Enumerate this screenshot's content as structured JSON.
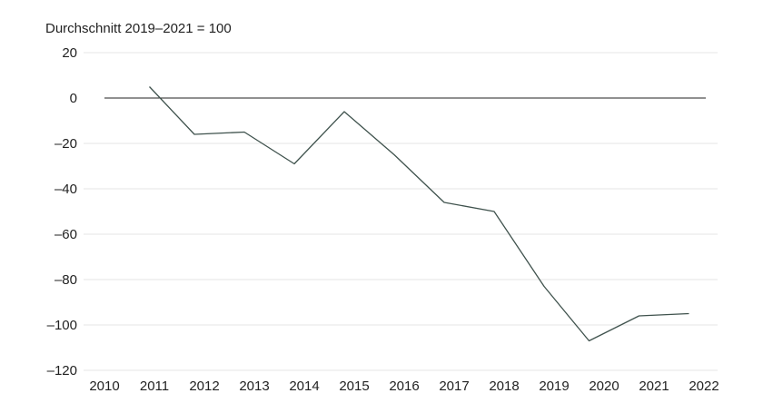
{
  "chart_data": {
    "type": "line",
    "unit_label": "Durchschnitt 2019–2021 = 100",
    "x_ticks": [
      "2010",
      "2011",
      "2012",
      "2013",
      "2014",
      "2015",
      "2016",
      "2017",
      "2018",
      "2019",
      "2020",
      "2021",
      "2022"
    ],
    "y_ticks": [
      "20",
      "0",
      "–20",
      "–40",
      "–60",
      "–80",
      "–100",
      "–120"
    ],
    "xlim": [
      2010,
      2022
    ],
    "ylim": [
      -120,
      20
    ],
    "grid": true,
    "series": [
      {
        "color": "#3f524d",
        "points": [
          {
            "x": 2010.9,
            "y": 5
          },
          {
            "x": 2011.8,
            "y": -16
          },
          {
            "x": 2012.8,
            "y": -15
          },
          {
            "x": 2013.8,
            "y": -29
          },
          {
            "x": 2014.8,
            "y": -6
          },
          {
            "x": 2015.8,
            "y": -25
          },
          {
            "x": 2016.8,
            "y": -46
          },
          {
            "x": 2017.8,
            "y": -50
          },
          {
            "x": 2018.8,
            "y": -83
          },
          {
            "x": 2019.7,
            "y": -107
          },
          {
            "x": 2020.7,
            "y": -96
          },
          {
            "x": 2021.7,
            "y": -95
          }
        ]
      }
    ]
  }
}
